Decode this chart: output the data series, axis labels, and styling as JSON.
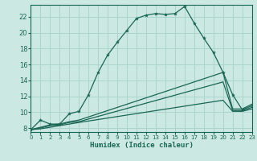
{
  "xlabel": "Humidex (Indice chaleur)",
  "bg_color": "#cce8e3",
  "grid_color": "#aad4ce",
  "line_color": "#1a6655",
  "xlim": [
    0,
    23
  ],
  "ylim": [
    7.5,
    23.5
  ],
  "xticks": [
    0,
    1,
    2,
    3,
    4,
    5,
    6,
    7,
    8,
    9,
    10,
    11,
    12,
    13,
    14,
    15,
    16,
    17,
    18,
    19,
    20,
    21,
    22,
    23
  ],
  "yticks": [
    8,
    10,
    12,
    14,
    16,
    18,
    20,
    22
  ],
  "curve1_x": [
    0,
    1,
    2,
    3,
    4,
    5,
    6,
    7,
    8,
    9,
    10,
    11,
    12,
    13,
    14,
    15,
    16,
    17,
    18,
    19,
    20,
    21,
    22,
    23
  ],
  "curve1_y": [
    7.8,
    9.0,
    8.5,
    8.5,
    9.8,
    10.1,
    12.2,
    15.0,
    17.2,
    18.8,
    20.3,
    21.8,
    22.2,
    22.4,
    22.3,
    22.4,
    23.3,
    21.2,
    19.3,
    17.5,
    15.0,
    12.2,
    10.3,
    10.8
  ],
  "line2_x": [
    0,
    1,
    2,
    3,
    4,
    5,
    20,
    21,
    22,
    23
  ],
  "line2_y": [
    7.8,
    8.1,
    8.4,
    8.5,
    8.8,
    9.0,
    15.0,
    10.4,
    10.4,
    11.0
  ],
  "line3_x": [
    0,
    1,
    2,
    3,
    4,
    5,
    20,
    21,
    22,
    23
  ],
  "line3_y": [
    7.8,
    8.0,
    8.3,
    8.4,
    8.7,
    8.8,
    13.8,
    10.2,
    10.2,
    10.6
  ],
  "line4_x": [
    0,
    1,
    2,
    3,
    4,
    5,
    20,
    21,
    22,
    23
  ],
  "line4_y": [
    7.8,
    7.9,
    8.1,
    8.3,
    8.5,
    8.7,
    11.5,
    10.1,
    10.1,
    10.4
  ]
}
